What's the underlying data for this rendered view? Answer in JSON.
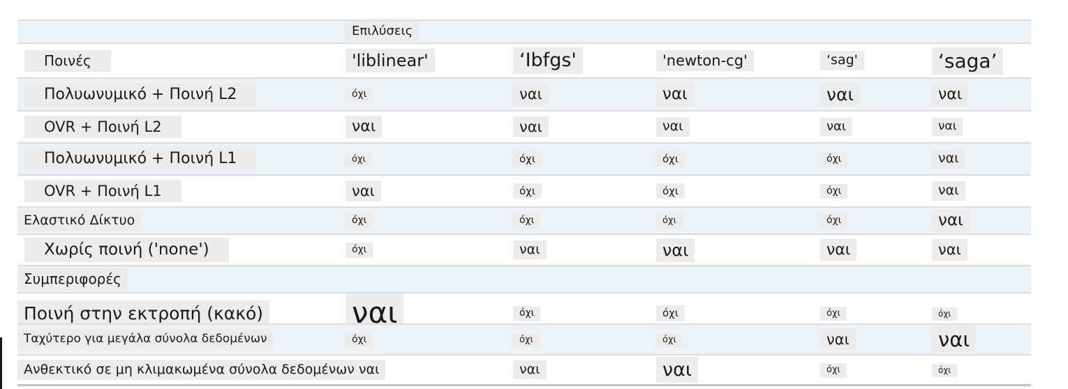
{
  "colors": {
    "row_shade": "#ebf3f8",
    "text_highlight_box": "#ececec",
    "row_border": "#dcdcdc",
    "bottom_border": "#c3c3c3",
    "text": "#1a1a1a"
  },
  "table": {
    "title_row": {
      "label": "Επιλύσεις",
      "fs": 18
    },
    "header_row": {
      "label": "Ποινές",
      "label_fs": 20,
      "solvers": [
        {
          "t": "'liblinear'",
          "fs": 24
        },
        {
          "t": "‘Ibfgs'",
          "fs": 27
        },
        {
          "t": "'newton-cg'",
          "fs": 21
        },
        {
          "t": "‘sag'",
          "fs": 19
        },
        {
          "t": "‘saga’",
          "fs": 28
        }
      ]
    },
    "rows": [
      {
        "label": "Πολυωνυμικό + Ποινή L2",
        "label_fs": 22,
        "style": "indent",
        "shade": true,
        "cells": [
          {
            "t": "όχι",
            "fs": 14
          },
          {
            "t": "ναι",
            "fs": 21
          },
          {
            "t": "ναι",
            "fs": 23
          },
          {
            "t": "ναι",
            "fs": 25
          },
          {
            "t": "ναι",
            "fs": 22
          }
        ]
      },
      {
        "label": "OVR + Ποινή L2",
        "label_fs": 21,
        "style": "indent",
        "shade": false,
        "cells": [
          {
            "t": "ναι",
            "fs": 22
          },
          {
            "t": "ναι",
            "fs": 21
          },
          {
            "t": "ναι",
            "fs": 19
          },
          {
            "t": "ναι",
            "fs": 18
          },
          {
            "t": "ναι",
            "fs": 17
          }
        ]
      },
      {
        "label": "Πολυωνυμικό + Ποινή L1",
        "label_fs": 22,
        "style": "indent",
        "shade": true,
        "cells": [
          {
            "t": "όχι",
            "fs": 13
          },
          {
            "t": "όχι",
            "fs": 15
          },
          {
            "t": "όχι",
            "fs": 15
          },
          {
            "t": "όχι",
            "fs": 14
          },
          {
            "t": "ναι",
            "fs": 19
          }
        ]
      },
      {
        "label": "OVR + Ποινή L1",
        "label_fs": 21,
        "style": "indent",
        "shade": false,
        "cells": [
          {
            "t": "ναι",
            "fs": 21
          },
          {
            "t": "όχι",
            "fs": 15
          },
          {
            "t": "όχι",
            "fs": 15
          },
          {
            "t": "όχι",
            "fs": 14
          },
          {
            "t": "ναι",
            "fs": 19
          }
        ]
      },
      {
        "label": "Ελαστικό Δίκτυο",
        "label_fs": 19,
        "style": "flush",
        "shade": true,
        "cells": [
          {
            "t": "όχι",
            "fs": 14
          },
          {
            "t": "όχι",
            "fs": 14
          },
          {
            "t": "όχι",
            "fs": 13
          },
          {
            "t": "όχι",
            "fs": 14
          },
          {
            "t": "ναι",
            "fs": 23
          }
        ]
      },
      {
        "label": "Χωρίς ποινή ('none')",
        "label_fs": 23,
        "style": "indent",
        "shade": false,
        "cells": [
          {
            "t": "όχι",
            "fs": 14
          },
          {
            "t": "ναι",
            "fs": 19
          },
          {
            "t": "ναι",
            "fs": 24
          },
          {
            "t": "ναι",
            "fs": 22
          },
          {
            "t": "ναι",
            "fs": 21
          }
        ]
      },
      {
        "label": "Συμπεριφορές",
        "label_fs": 20,
        "style": "flush",
        "shade": true,
        "cells": []
      },
      {
        "label": "Ποινή στην εκτροπή (κακό)",
        "label_fs": 25,
        "style": "flush",
        "shade": false,
        "cells": [
          {
            "t": "ναι",
            "fs": 42
          },
          {
            "t": "όχι",
            "fs": 14
          },
          {
            "t": "όχι",
            "fs": 15
          },
          {
            "t": "όχι",
            "fs": 13
          },
          {
            "t": "όχι",
            "fs": 12
          }
        ]
      },
      {
        "label": "Ταχύτερο για μεγάλα σύνολα δεδομένων",
        "label_fs": 17,
        "style": "flush",
        "shade": true,
        "cells": [
          {
            "t": "όχι",
            "fs": 14
          },
          {
            "t": "όχι",
            "fs": 13
          },
          {
            "t": "όχι",
            "fs": 13
          },
          {
            "t": "ναι",
            "fs": 21
          },
          {
            "t": "ναι",
            "fs": 29
          }
        ]
      },
      {
        "label": "Ανθεκτικό σε μη κλιμακωμένα σύνολα δεδομένων ναι",
        "label_fs": 19,
        "style": "flush",
        "shade": false,
        "cells": [
          {
            "t": "",
            "fs": 0
          },
          {
            "t": "ναι",
            "fs": 19
          },
          {
            "t": "ναι",
            "fs": 27
          },
          {
            "t": "όχι",
            "fs": 13
          },
          {
            "t": "όχι",
            "fs": 12
          }
        ]
      }
    ]
  }
}
